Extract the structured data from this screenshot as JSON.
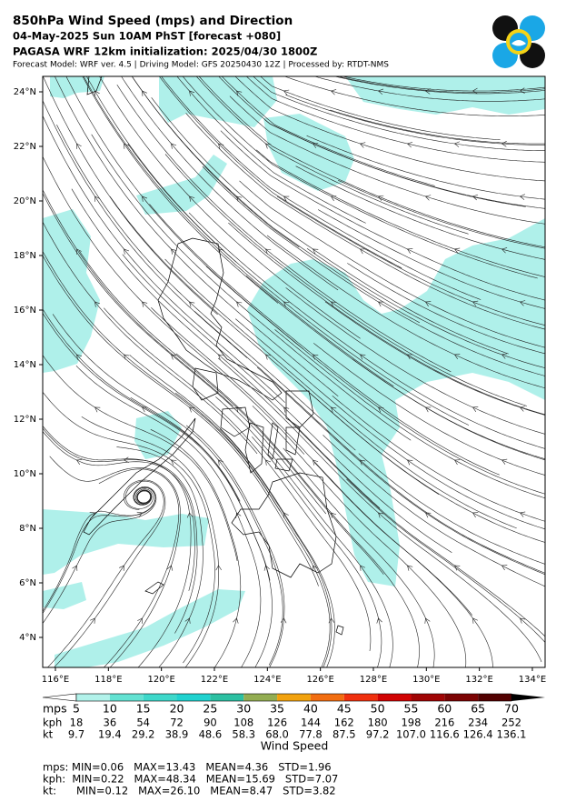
{
  "header": {
    "title": "850hPa Wind Speed (mps) and Direction",
    "subtitle": "04-May-2025 Sun 10AM PhST [forecast +080]",
    "initialization": "PAGASA WRF 12km initialization: 2025/04/30 1800Z",
    "info": "Forecast Model: WRF ver. 4.5 | Driving Model: GFS 20250430 12Z | Processed by: RTDT-NMS"
  },
  "map": {
    "lat_labels": [
      "24°N",
      "22°N",
      "20°N",
      "18°N",
      "16°N",
      "14°N",
      "12°N",
      "10°N",
      "8°N",
      "6°N",
      "4°N"
    ],
    "lon_labels": [
      "116°E",
      "118°E",
      "120°E",
      "122°E",
      "124°E",
      "126°E",
      "128°E",
      "130°E",
      "132°E",
      "134°E"
    ]
  },
  "colorbar": {
    "label": "Wind Speed",
    "under_color": "#ffffff",
    "over_color": "#000000",
    "colors": [
      "#b2f2ea",
      "#63e2d2",
      "#3ed8ca",
      "#20d2cf",
      "#2cc0a2",
      "#93ad52",
      "#f2a20e",
      "#f26d10",
      "#f0300e",
      "#d10303",
      "#a00404",
      "#7c0303",
      "#520000"
    ],
    "rows": [
      {
        "unit": "mps",
        "values": [
          5,
          10,
          15,
          20,
          25,
          30,
          35,
          40,
          45,
          50,
          55,
          60,
          65,
          70
        ]
      },
      {
        "unit": "kph",
        "values": [
          18,
          36,
          54,
          72,
          90,
          108,
          126,
          144,
          162,
          180,
          198,
          216,
          234,
          252
        ]
      },
      {
        "unit": "kt",
        "values": [
          "9.7",
          "19.4",
          "29.2",
          "38.9",
          "48.6",
          "58.3",
          "68.0",
          "77.8",
          "87.5",
          "97.2",
          "107.0",
          "116.6",
          "126.4",
          "136.1"
        ]
      }
    ]
  },
  "stats": [
    "mps: MIN=0.06   MAX=13.43   MEAN=4.36   STD=1.96",
    "kph:  MIN=0.22   MAX=48.34   MEAN=15.69   STD=7.07",
    "kt:      MIN=0.12   MAX=26.10   MEAN=8.47   STD=3.82"
  ]
}
